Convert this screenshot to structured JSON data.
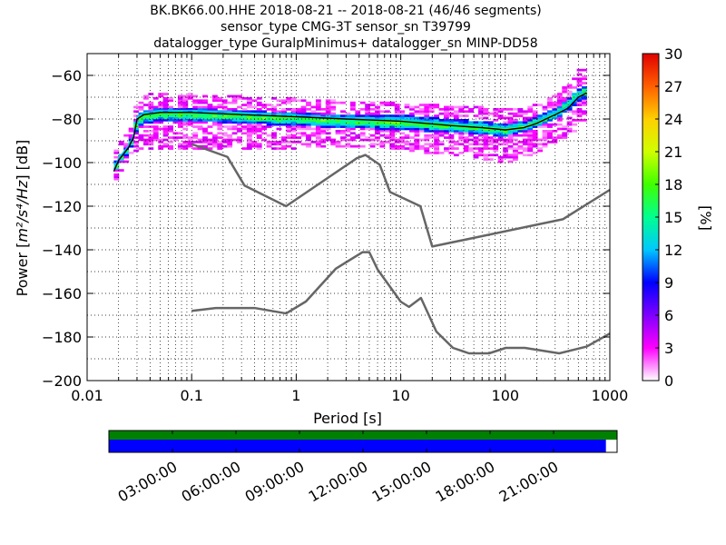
{
  "title": {
    "line1": "BK.BK66.00.HHE   2018-08-21 -- 2018-08-21  (46/46 segments)",
    "line2": "sensor_type CMG-3T sensor_sn T39799",
    "line3": "datalogger_type GuralpMinimus+ datalogger_sn MINP-DD58"
  },
  "chart_data": [
    {
      "type": "heatmap",
      "xlabel": "Period [s]",
      "ylabel_prefix": "Power [",
      "ylabel_math": "m²/s⁴/Hz",
      "ylabel_suffix": "] [dB]",
      "xscale": "log",
      "xlim": [
        0.01,
        1000
      ],
      "ylim": [
        -200,
        -50
      ],
      "x_ticks": [
        0.01,
        0.1,
        1,
        10,
        100,
        1000
      ],
      "x_tick_labels": [
        "0.01",
        "0.1",
        "1",
        "10",
        "100",
        "1000"
      ],
      "y_ticks": [
        -200,
        -180,
        -160,
        -140,
        -120,
        -100,
        -80,
        -60
      ],
      "y_tick_labels": [
        "−200",
        "−180",
        "−160",
        "−140",
        "−120",
        "−100",
        "−80",
        "−60"
      ],
      "grid": true,
      "grid_style": "dotted",
      "colorbar": {
        "label": "[%]",
        "min": 0,
        "max": 30,
        "ticks": [
          0,
          3,
          6,
          9,
          12,
          15,
          18,
          21,
          24,
          27,
          30
        ],
        "tick_labels": [
          "0",
          "3",
          "6",
          "9",
          "12",
          "15",
          "18",
          "21",
          "24",
          "27",
          "30"
        ],
        "colormap": [
          "#ffffff",
          "#ff00ff",
          "#7f00ff",
          "#0000ff",
          "#00c8ff",
          "#00ff90",
          "#40ff00",
          "#d0ff00",
          "#ffd000",
          "#ff6000",
          "#e00000"
        ]
      },
      "nlnm": {
        "name": "",
        "x": [
          0.1,
          0.17,
          0.4,
          0.8,
          1.24,
          2.4,
          4.3,
          5,
          6,
          10,
          12,
          15.6,
          21.9,
          31.6,
          45,
          70,
          101,
          154,
          328,
          600,
          1000
        ],
        "y": [
          -168,
          -166.7,
          -166.7,
          -169.2,
          -163.7,
          -148.6,
          -141.1,
          -141.1,
          -149,
          -163.8,
          -166.2,
          -162.1,
          -177.5,
          -185,
          -187.5,
          -187.5,
          -185,
          -185,
          -187.5,
          -184.4,
          -178.4
        ]
      },
      "nhnm": {
        "name": "",
        "x": [
          0.1,
          0.22,
          0.32,
          0.8,
          3.8,
          4.6,
          6.3,
          7.9,
          15.4,
          20,
          354.8,
          1000
        ],
        "y": [
          -91.5,
          -97.4,
          -110.5,
          -120,
          -98,
          -96.5,
          -101,
          -113.5,
          -120,
          -138.5,
          -126,
          -112.5
        ]
      },
      "psd_band": {
        "x": [
          0.018,
          0.02,
          0.025,
          0.028,
          0.03,
          0.035,
          0.05,
          0.1,
          0.3,
          1,
          3,
          10,
          30,
          60,
          100,
          150,
          200,
          300,
          400,
          500,
          600
        ],
        "top": [
          -97,
          -92,
          -86,
          -80,
          -72,
          -69,
          -68,
          -69,
          -70,
          -71,
          -72,
          -73,
          -74,
          -75,
          -76,
          -75,
          -73,
          -69,
          -64,
          -58,
          -56
        ],
        "bottom": [
          -110,
          -105,
          -100,
          -96,
          -94,
          -94,
          -94,
          -94,
          -94,
          -93,
          -92,
          -94,
          -96,
          -98,
          -100,
          -97,
          -95,
          -90,
          -88,
          -84,
          -81
        ],
        "core_top": [
          -102,
          -97,
          -92,
          -86,
          -78,
          -76,
          -75,
          -75,
          -76,
          -77,
          -78,
          -78,
          -80,
          -81,
          -82,
          -81,
          -79,
          -75,
          -71,
          -66,
          -64
        ],
        "core_bottom": [
          -106,
          -101,
          -95,
          -90,
          -84,
          -82,
          -81,
          -81,
          -82,
          -83,
          -84,
          -85,
          -86,
          -87,
          -88,
          -86,
          -84,
          -80,
          -76,
          -72,
          -70
        ],
        "mean": [
          -104,
          -99,
          -93,
          -88,
          -80,
          -78,
          -77,
          -77,
          -78,
          -79,
          -80,
          -81,
          -83,
          -84,
          -85,
          -84,
          -82,
          -78,
          -75,
          -70,
          -68
        ],
        "mode": [
          -103,
          -98,
          -92,
          -87,
          -79,
          -77,
          -76,
          -76,
          -77,
          -78,
          -80,
          -80,
          -82,
          -83,
          -84,
          -83,
          -81,
          -77,
          -74,
          -69,
          -67
        ]
      }
    },
    {
      "type": "timeline",
      "time_ticks": [
        "03:00:00",
        "06:00:00",
        "09:00:00",
        "12:00:00",
        "15:00:00",
        "18:00:00",
        "21:00:00"
      ],
      "coverage_green": [
        0,
        1
      ],
      "coverage_blue": [
        0,
        0.978
      ]
    }
  ],
  "colors": {
    "nm_line": "#666666",
    "mean_line": "#000000",
    "green_bar": "#008000",
    "blue_bar": "#0000ff"
  }
}
